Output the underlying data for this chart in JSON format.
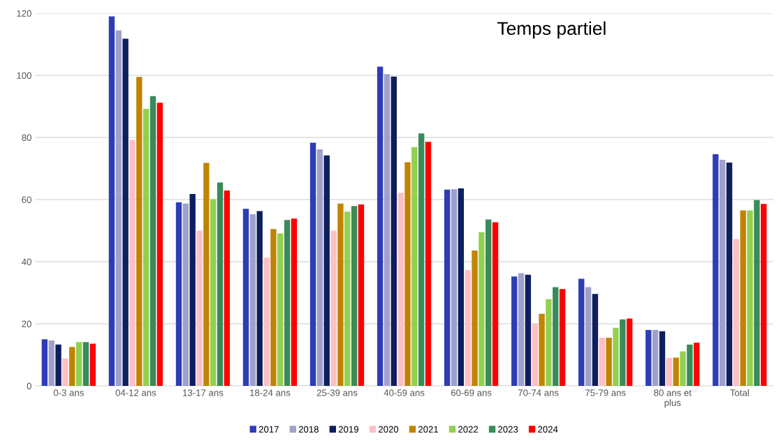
{
  "chart_data": {
    "type": "bar",
    "title": "Temps partiel",
    "categories": [
      "0-3 ans",
      "04-12 ans",
      "13-17 ans",
      "18-24 ans",
      "25-39 ans",
      "40-59 ans",
      "60-69 ans",
      "70-74 ans",
      "75-79 ans",
      "80 ans et plus",
      "Total"
    ],
    "series": [
      {
        "name": "2017",
        "color": "#2e3db5",
        "values": [
          15,
          119,
          59.1,
          57,
          78.3,
          102.8,
          63.2,
          35.2,
          34.5,
          18,
          74.6
        ]
      },
      {
        "name": "2018",
        "color": "#a0a0cc",
        "values": [
          14.6,
          114.5,
          58.7,
          55.3,
          76.2,
          100.4,
          63.3,
          36.3,
          31.8,
          18,
          72.8
        ]
      },
      {
        "name": "2019",
        "color": "#0d1f5c",
        "values": [
          13.3,
          111.8,
          61.8,
          56.3,
          74.2,
          99.6,
          63.6,
          35.8,
          29.6,
          17.6,
          71.9
        ]
      },
      {
        "name": "2020",
        "color": "#ffbfc4",
        "values": [
          8.8,
          79.2,
          50,
          41.3,
          50,
          62.2,
          37.3,
          20,
          15.5,
          9,
          47.3
        ]
      },
      {
        "name": "2021",
        "color": "#c08400",
        "values": [
          12.5,
          99.5,
          71.8,
          50.5,
          58.7,
          72,
          43.6,
          23.2,
          15.5,
          9.1,
          56.5
        ]
      },
      {
        "name": "2022",
        "color": "#92d050",
        "values": [
          14.1,
          89.2,
          60.1,
          49.1,
          56.1,
          76.9,
          49.5,
          27.9,
          18.7,
          11.1,
          56.5
        ]
      },
      {
        "name": "2023",
        "color": "#3a8a5a",
        "values": [
          14.1,
          93.3,
          65.5,
          53.4,
          57.9,
          81.3,
          53.6,
          31.8,
          21.4,
          13.3,
          59.8
        ]
      },
      {
        "name": "2024",
        "color": "#ff0000",
        "values": [
          13.6,
          91.2,
          62.9,
          53.9,
          58.4,
          78.6,
          52.7,
          31.2,
          21.7,
          13.9,
          58.6
        ]
      }
    ],
    "ylim": [
      0,
      120
    ],
    "yticks": [
      0,
      20,
      40,
      60,
      80,
      100,
      120
    ],
    "grid": "y",
    "legend": "bottom"
  }
}
